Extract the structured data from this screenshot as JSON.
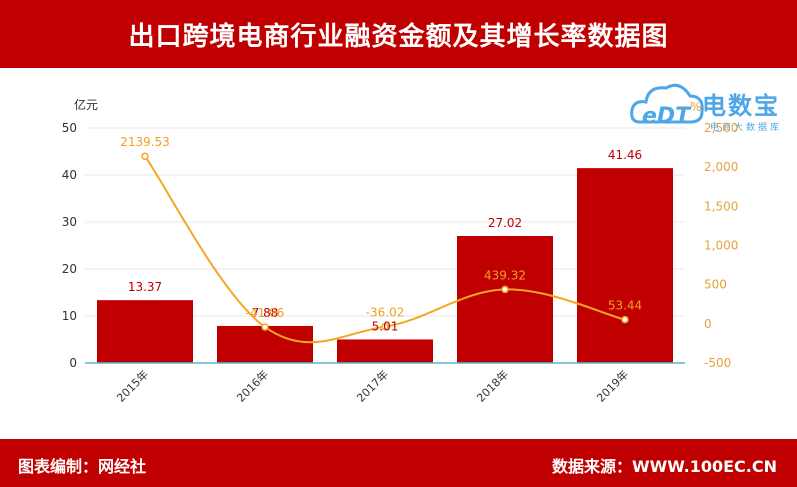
{
  "header": {
    "title": "出口跨境电商行业融资金额及其增长率数据图"
  },
  "footer": {
    "left": "图表编制：网经社",
    "right": "数据来源：WWW.100EC.CN"
  },
  "logo": {
    "cn": "电数宝",
    "sub": "电商大数据库",
    "mark": "eDT"
  },
  "colors": {
    "header_bg": "#c00000",
    "bar": "#c00000",
    "line": "#f5a623",
    "logo": "#4da6e8"
  },
  "chart_data": {
    "type": "bar",
    "categories": [
      "2015年",
      "2016年",
      "2017年",
      "2018年",
      "2019年"
    ],
    "series": [
      {
        "values": [
          13.37,
          7.88,
          5.01,
          27.02,
          41.46
        ],
        "axis": "left",
        "kind": "bar"
      },
      {
        "values": [
          2139.53,
          -41.06,
          -36.02,
          439.32,
          53.44
        ],
        "axis": "right",
        "kind": "line"
      }
    ],
    "bar_labels": [
      "13.37",
      "7.88",
      "5.01",
      "27.02",
      "41.46"
    ],
    "line_labels": [
      "2139.53",
      "-41.06",
      "-36.02",
      "439.32",
      "53.44"
    ],
    "ylabel": "亿元",
    "y2label": "%",
    "ylim": [
      0,
      50
    ],
    "y2lim": [
      -500,
      2500
    ],
    "yticks": [
      "0",
      "10",
      "20",
      "30",
      "40",
      "50"
    ],
    "y2ticks": [
      "-500",
      "0",
      "500",
      "1,000",
      "1,500",
      "2,000",
      "2,500"
    ],
    "grid": true
  }
}
